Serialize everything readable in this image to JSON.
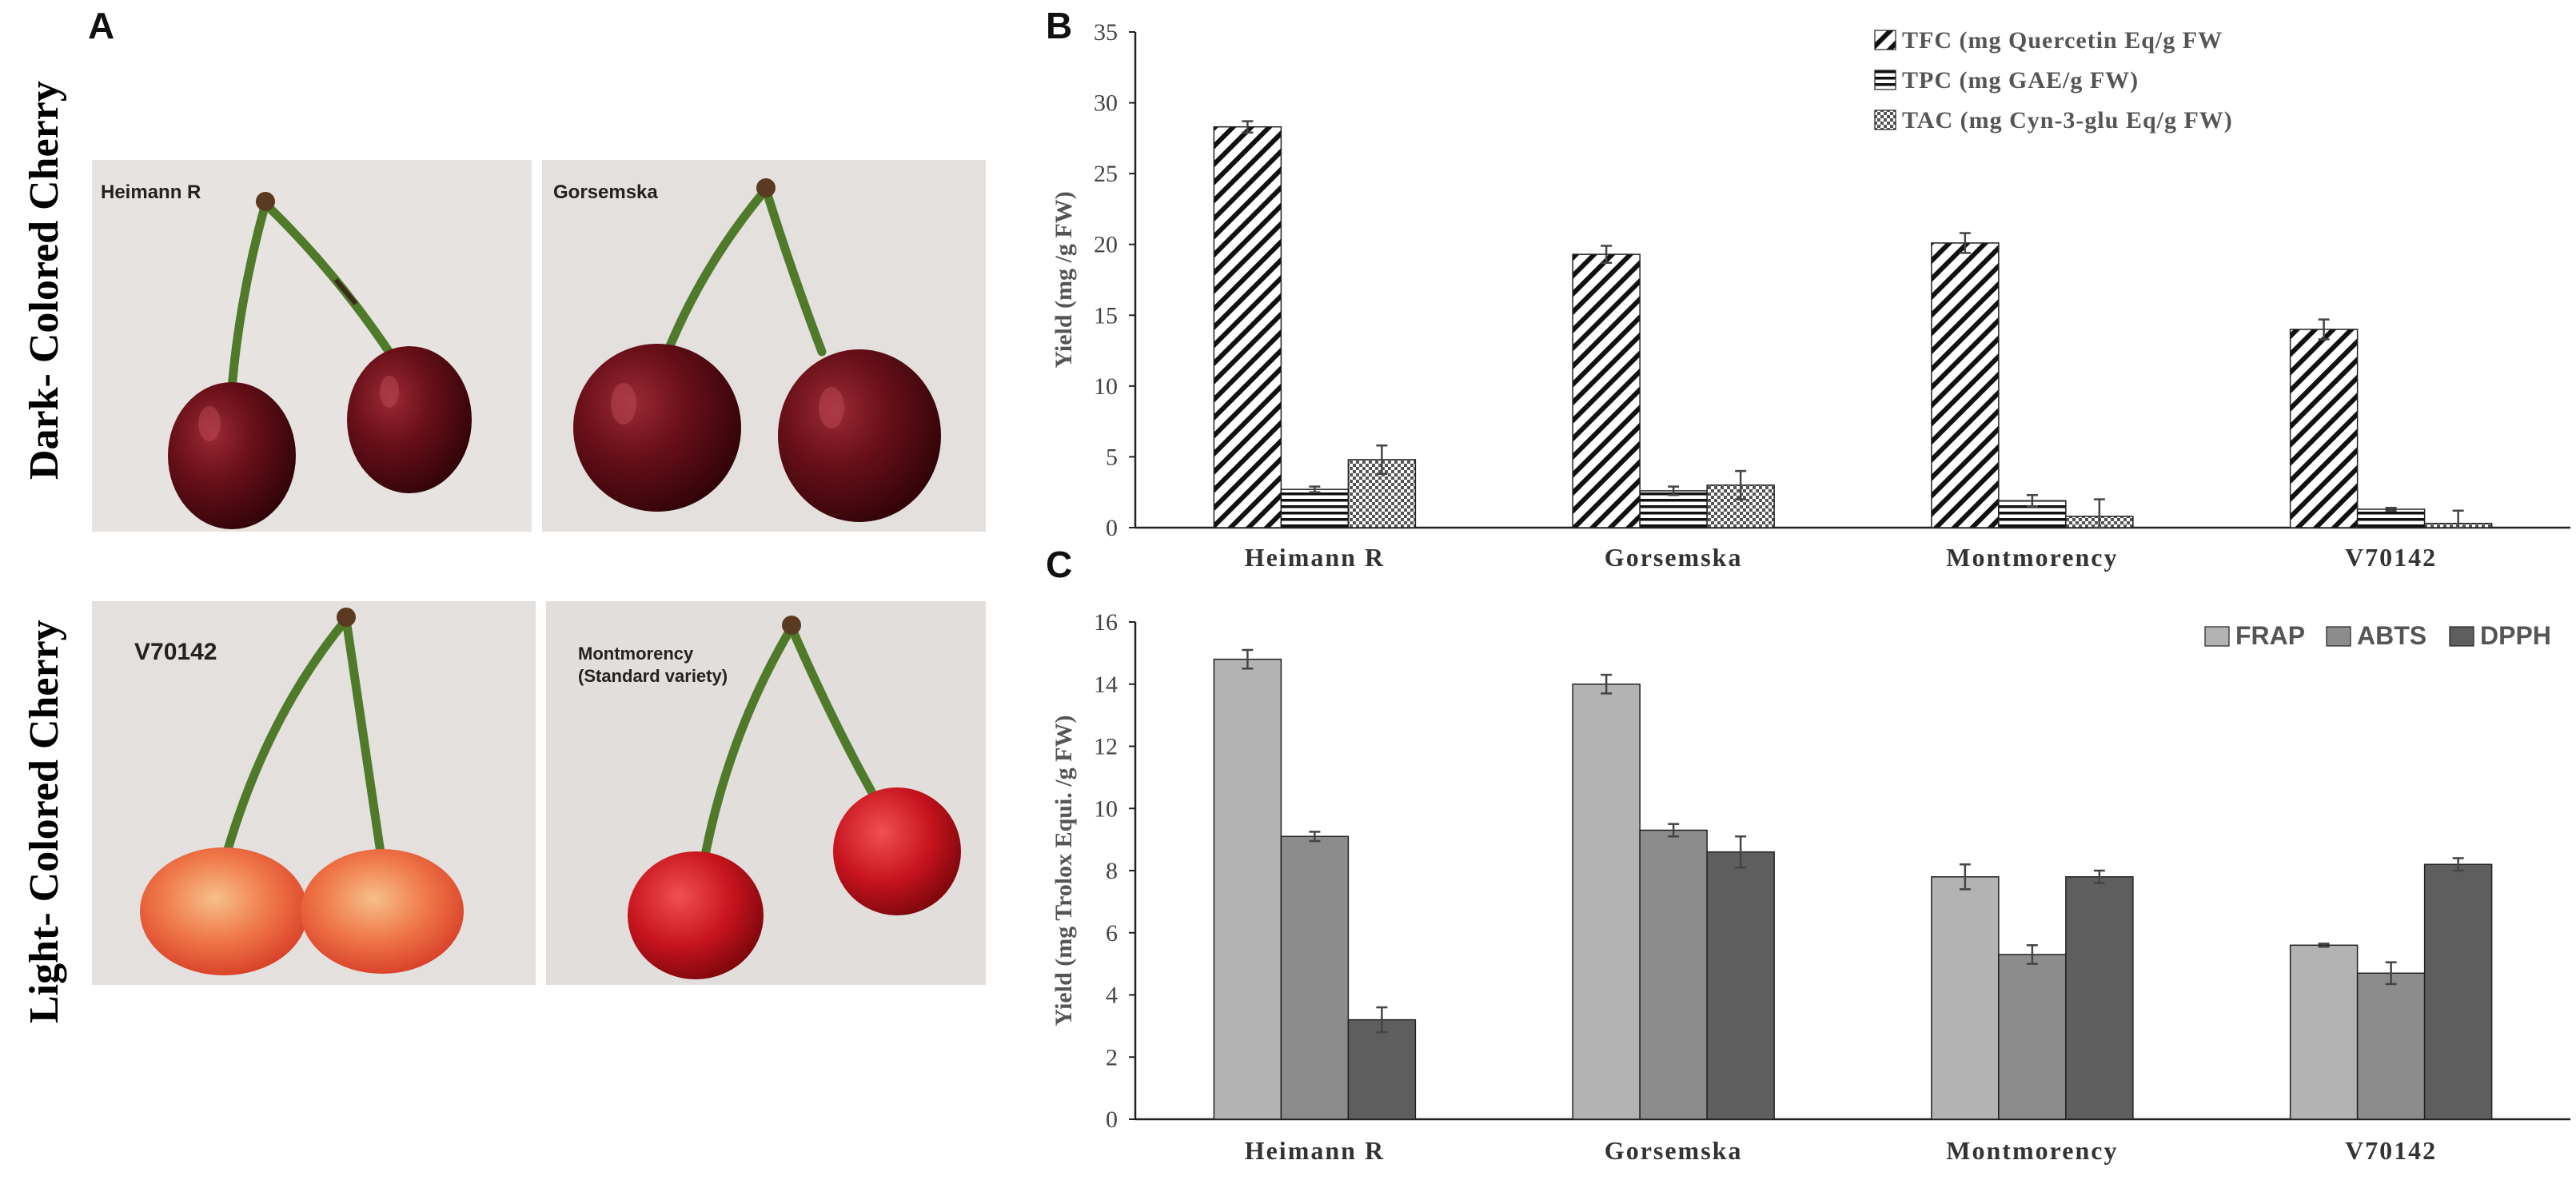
{
  "panels": {
    "a": "A",
    "b": "B",
    "c": "C"
  },
  "panel_a": {
    "row_labels": {
      "dark": "Dark- Colored Cherry",
      "light": "Light- Colored Cherry"
    },
    "photos": {
      "heimann": "Heimann R",
      "gorsemska": "Gorsemska",
      "v70142": "V70142",
      "montmorency_line1": "Montmorency",
      "montmorency_line2": "(Standard variety)"
    },
    "colors": {
      "dark_cherry": "#5e0d16",
      "light_cherry_red": "#e0402a",
      "light_cherry_yellow": "#f2a070",
      "bright_cherry": "#c8141e",
      "stem": "#4f7a2a",
      "background": "#e6e2df"
    }
  },
  "chart_data": [
    {
      "type": "bar",
      "panel": "B",
      "title": "",
      "ylabel": "Yield (mg /g FW)",
      "xlabel": "",
      "ylim": [
        0,
        35
      ],
      "yticks": [
        0,
        5,
        10,
        15,
        20,
        25,
        30,
        35
      ],
      "categories": [
        "Heimann R",
        "Gorsemska",
        "Montmorency",
        "V70142"
      ],
      "series": [
        {
          "name": "TFC (mg Quercetin Eq/g FW",
          "pattern": "diagonal",
          "values": [
            28.3,
            19.3,
            20.1,
            14.0
          ],
          "errors": [
            0.4,
            0.6,
            0.7,
            0.7
          ]
        },
        {
          "name": "TPC  (mg GAE/g FW)",
          "pattern": "horizontal",
          "values": [
            2.7,
            2.6,
            1.9,
            1.3
          ],
          "errors": [
            0.2,
            0.3,
            0.4,
            0.1
          ]
        },
        {
          "name": "TAC (mg Cyn-3-glu Eq/g FW)",
          "pattern": "checker",
          "values": [
            4.8,
            3.0,
            0.8,
            0.3
          ],
          "errors": [
            1.0,
            1.0,
            1.2,
            0.9
          ]
        }
      ],
      "legend_position": "top-right",
      "grid": false
    },
    {
      "type": "bar",
      "panel": "C",
      "title": "",
      "ylabel": "Yield (mg Trolox Equi. /g FW)",
      "xlabel": "",
      "ylim": [
        0,
        16
      ],
      "yticks": [
        0,
        2,
        4,
        6,
        8,
        10,
        12,
        14,
        16
      ],
      "categories": [
        "Heimann R",
        "Gorsemska",
        "Montmorency",
        "V70142"
      ],
      "series": [
        {
          "name": "FRAP",
          "color": "#b3b3b3",
          "values": [
            14.8,
            14.0,
            7.8,
            5.6
          ],
          "errors": [
            0.3,
            0.3,
            0.4,
            0.05
          ]
        },
        {
          "name": "ABTS",
          "color": "#8c8c8c",
          "values": [
            9.1,
            9.3,
            5.3,
            4.7
          ],
          "errors": [
            0.15,
            0.2,
            0.3,
            0.35
          ]
        },
        {
          "name": "DPPH",
          "color": "#5e5e5e",
          "values": [
            3.2,
            8.6,
            7.8,
            8.2
          ],
          "errors": [
            0.4,
            0.5,
            0.2,
            0.2
          ]
        }
      ],
      "legend_position": "top-right",
      "grid": false
    }
  ]
}
